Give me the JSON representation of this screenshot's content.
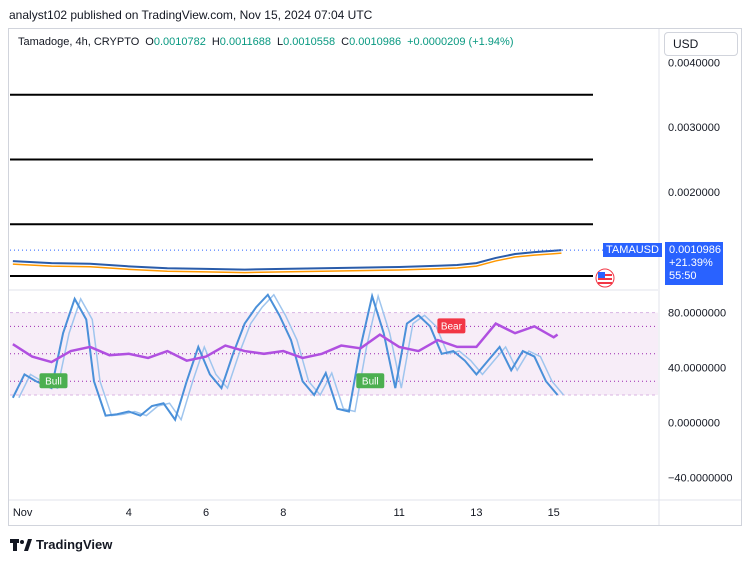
{
  "header": {
    "published_text": "analyst102 published on TradingView.com, Nov 15, 2024 07:04 UTC"
  },
  "symbol": {
    "name": "Tamadoge, 4h, CRYPTO",
    "open_label": "O",
    "open": "0.0010782",
    "high_label": "H",
    "high": "0.0011688",
    "low_label": "L",
    "low": "0.0010558",
    "close_label": "C",
    "close": "0.0010986",
    "change": "+0.0000209 (+1.94%)"
  },
  "currency_button": "USD",
  "price_tag": {
    "ticker": "TAMAUSD",
    "price": "0.0010986",
    "change": "+21.39%",
    "countdown": "55:50"
  },
  "footer": {
    "brand": "TradingView",
    "logo_icon": "tradingview-logo-icon"
  },
  "colors": {
    "stoch_k": "#4a90d9",
    "stoch_d_light": "#9fc5ee",
    "rsi_line": "#b050e0",
    "bull_badge": "#4caf50",
    "bear_badge": "#f23645",
    "accent": "#2962ff",
    "band_fill": "#f3e5f5",
    "ema_orange": "#ff9800"
  },
  "chart_data": [
    {
      "type": "line",
      "panel": "price",
      "title": "",
      "ylim": [
        0.0005,
        0.0045
      ],
      "y_ticks": [
        "0.0040000",
        "0.0030000",
        "0.0020000"
      ],
      "y_tick_values": [
        0.004,
        0.003,
        0.002
      ],
      "grid": false,
      "horizontal_levels": [
        0.0035,
        0.0025,
        0.0015,
        0.0007
      ],
      "x_tick_labels": [
        "Nov",
        "4",
        "6",
        "8",
        "11",
        "13",
        "15"
      ],
      "x_tick_values": [
        1,
        4,
        6,
        8,
        11,
        13,
        15
      ],
      "xlim": [
        0.9,
        17.7
      ],
      "series": [
        {
          "x": [
            1,
            2,
            3,
            4,
            5,
            6,
            7,
            8,
            9,
            10,
            11,
            12,
            12.5,
            13,
            13.5,
            14,
            14.5,
            15,
            15.2
          ],
          "values": [
            0.00093,
            0.0009,
            0.00089,
            0.00085,
            0.00082,
            0.00081,
            0.0008,
            0.00081,
            0.00082,
            0.00083,
            0.00084,
            0.00086,
            0.00087,
            0.0009,
            0.00098,
            0.00104,
            0.00107,
            0.00109,
            0.0011
          ]
        }
      ]
    },
    {
      "type": "line",
      "panel": "oscillator",
      "title": "",
      "ylim": [
        -55,
        95
      ],
      "y_ticks": [
        "80.0000000",
        "40.0000000",
        "0.0000000",
        "−40.0000000"
      ],
      "y_tick_values": [
        80,
        40,
        0,
        -40
      ],
      "band": [
        20,
        80
      ],
      "dotted_levels": [
        70,
        50,
        30
      ],
      "annotations": [
        "Bull",
        "Bull",
        "Bear"
      ],
      "annotation_x": [
        2.0,
        10.2,
        12.3
      ],
      "xlim": [
        0.9,
        17.7
      ],
      "series": [
        {
          "x": [
            1,
            1.3,
            1.6,
            2,
            2.3,
            2.6,
            2.9,
            3.1,
            3.4,
            3.7,
            4,
            4.3,
            4.6,
            4.9,
            5.2,
            5.5,
            5.8,
            6.1,
            6.4,
            6.7,
            7,
            7.3,
            7.6,
            7.9,
            8.2,
            8.5,
            8.8,
            9.1,
            9.4,
            9.7,
            10,
            10.3,
            10.6,
            10.9,
            11.2,
            11.5,
            11.8,
            12.1,
            12.4,
            12.7,
            13,
            13.3,
            13.6,
            13.9,
            14.2,
            14.5,
            14.8,
            15.1
          ],
          "values": [
            18,
            35,
            30,
            25,
            65,
            90,
            75,
            30,
            5,
            6,
            8,
            5,
            12,
            14,
            2,
            30,
            55,
            35,
            25,
            50,
            72,
            84,
            93,
            78,
            60,
            30,
            20,
            36,
            10,
            8,
            55,
            92,
            65,
            25,
            72,
            78,
            70,
            50,
            52,
            45,
            35,
            45,
            55,
            38,
            52,
            48,
            30,
            20
          ]
        },
        {
          "x": [
            1,
            1.5,
            2,
            2.5,
            3,
            3.5,
            4,
            4.5,
            5,
            5.5,
            6,
            6.5,
            7,
            7.5,
            8,
            8.5,
            9,
            9.5,
            10,
            10.5,
            11,
            11.5,
            12,
            12.5,
            13,
            13.5,
            14,
            14.5,
            15,
            15.1
          ],
          "values": [
            57,
            48,
            44,
            52,
            55,
            49,
            50,
            47,
            52,
            45,
            48,
            56,
            52,
            50,
            52,
            47,
            50,
            56,
            54,
            64,
            55,
            52,
            60,
            55,
            55,
            72,
            65,
            70,
            62,
            64
          ]
        }
      ]
    }
  ]
}
